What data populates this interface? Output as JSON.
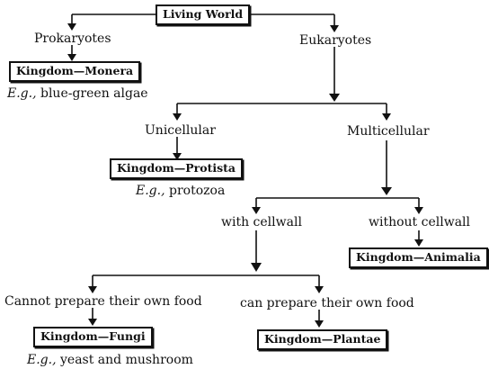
{
  "diagram": {
    "root": "Living World",
    "prokaryotes": {
      "label": "Prokaryotes",
      "kingdom": "Kingdom—Monera",
      "example_prefix": "E.g.,",
      "example": " blue-green algae"
    },
    "eukaryotes": {
      "label": "Eukaryotes",
      "unicellular": {
        "label": "Unicellular",
        "kingdom": "Kingdom—Protista",
        "example_prefix": "E.g.,",
        "example": " protozoa"
      },
      "multicellular": {
        "label": "Multicellular",
        "with_cellwall": {
          "label": "with cellwall",
          "cannot_prepare": {
            "label": "Cannot prepare their own food",
            "kingdom": "Kingdom—Fungi",
            "example_prefix": "E.g.,",
            "example": " yeast and mushroom"
          },
          "can_prepare": {
            "label": "can prepare their own food",
            "kingdom": "Kingdom—Plantae"
          }
        },
        "without_cellwall": {
          "label": "without cellwall",
          "kingdom": "Kingdom—Animalia"
        }
      }
    }
  }
}
